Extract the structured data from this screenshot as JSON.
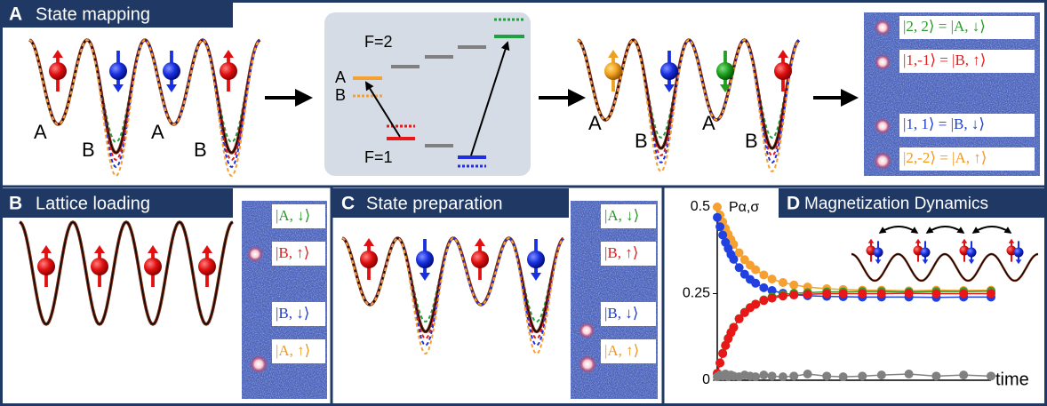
{
  "panels": {
    "A": {
      "letter": "A",
      "title": "State mapping",
      "well_labels_left": [
        "A",
        "B",
        "A",
        "B"
      ],
      "levels": {
        "upper": "F=2",
        "lower": "F=1",
        "level_a": "A",
        "level_b": "B"
      },
      "well_labels_right": [
        "A",
        "B",
        "A",
        "B"
      ],
      "state_labels": [
        "|2, 2⟩ = |A, ↓⟩",
        "|1,-1⟩ = |B, ↑⟩",
        "|1, 1⟩ = |B, ↓⟩",
        "|2,-2⟩ = |A, ↑⟩"
      ]
    },
    "B": {
      "letter": "B",
      "title": "Lattice loading",
      "state_labels": [
        "|A, ↓⟩",
        "|B, ↑⟩",
        "|B, ↓⟩",
        "|A, ↑⟩"
      ]
    },
    "C": {
      "letter": "C",
      "title": "State preparation",
      "state_labels": [
        "|A, ↓⟩",
        "|B, ↑⟩",
        "|B, ↓⟩",
        "|A, ↑⟩"
      ]
    },
    "D": {
      "letter": "D",
      "title": "Magnetization Dynamics"
    }
  },
  "chart_data": {
    "type": "line",
    "y_label": "Pα,σ",
    "x_label": "time",
    "x": [
      0,
      1,
      2,
      3,
      4,
      5,
      6,
      8,
      10,
      12,
      14,
      17,
      20,
      24,
      28,
      33,
      40,
      46,
      53,
      60,
      70,
      80,
      90,
      100
    ],
    "xlim": [
      0,
      100
    ],
    "ylim": [
      0,
      0.5
    ],
    "yticks": [
      0,
      0.25,
      0.5
    ],
    "series": [
      {
        "color": "#f5a030",
        "values": [
          0.5,
          0.477,
          0.457,
          0.438,
          0.421,
          0.406,
          0.392,
          0.368,
          0.348,
          0.332,
          0.319,
          0.304,
          0.292,
          0.282,
          0.275,
          0.269,
          0.264,
          0.262,
          0.26,
          0.26,
          0.258,
          0.26,
          0.259,
          0.26
        ]
      },
      {
        "color": "#2040e0",
        "values": [
          0.47,
          0.443,
          0.419,
          0.398,
          0.38,
          0.363,
          0.349,
          0.325,
          0.306,
          0.291,
          0.28,
          0.267,
          0.259,
          0.251,
          0.247,
          0.244,
          0.242,
          0.241,
          0.24,
          0.24,
          0.24,
          0.239,
          0.24,
          0.24
        ]
      },
      {
        "color": "#30a030",
        "values": [
          0.02,
          0.05,
          0.078,
          0.101,
          0.121,
          0.138,
          0.153,
          0.178,
          0.196,
          0.21,
          0.22,
          0.232,
          0.24,
          0.247,
          0.251,
          0.253,
          0.255,
          0.255,
          0.256,
          0.256,
          0.255,
          0.256,
          0.256,
          0.257
        ]
      },
      {
        "color": "#e81818",
        "values": [
          0.02,
          0.05,
          0.077,
          0.1,
          0.12,
          0.137,
          0.152,
          0.177,
          0.195,
          0.209,
          0.219,
          0.23,
          0.237,
          0.243,
          0.246,
          0.248,
          0.25,
          0.25,
          0.25,
          0.25,
          0.251,
          0.25,
          0.25,
          0.25
        ]
      },
      {
        "color": "#808080",
        "values": [
          0.01,
          0.015,
          0.012,
          0.018,
          0.01,
          0.015,
          0.012,
          0.01,
          0.015,
          0.012,
          0.01,
          0.015,
          0.012,
          0.01,
          0.012,
          0.018,
          0.012,
          0.01,
          0.012,
          0.015,
          0.018,
          0.012,
          0.015,
          0.012
        ]
      }
    ]
  }
}
